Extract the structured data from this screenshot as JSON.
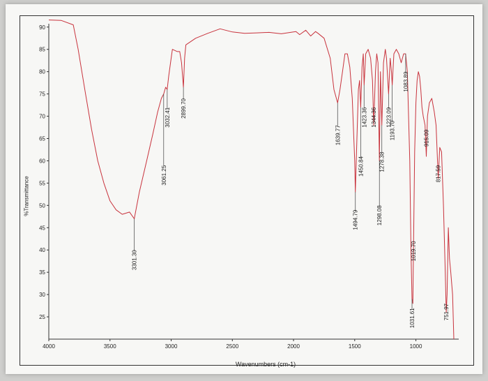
{
  "chart_data": {
    "type": "line",
    "title": "",
    "xlabel": "Wavenumbers (cm-1)",
    "ylabel": "%Transmittance",
    "xlim": [
      4000,
      650
    ],
    "ylim": [
      20,
      92
    ],
    "x_ticks": [
      4000,
      3500,
      3000,
      2500,
      2000,
      1500,
      1000
    ],
    "y_ticks": [
      25,
      30,
      35,
      40,
      45,
      50,
      55,
      60,
      65,
      70,
      75,
      80,
      85,
      90
    ],
    "series": [
      {
        "color": "#c8323c",
        "points": [
          [
            4000,
            91.6
          ],
          [
            3900,
            91.5
          ],
          [
            3800,
            90.5
          ],
          [
            3760,
            85
          ],
          [
            3700,
            75
          ],
          [
            3650,
            67
          ],
          [
            3600,
            60
          ],
          [
            3550,
            55
          ],
          [
            3500,
            51
          ],
          [
            3450,
            49
          ],
          [
            3400,
            48
          ],
          [
            3340,
            48.5
          ],
          [
            3301.3,
            47
          ],
          [
            3260,
            53
          ],
          [
            3200,
            60
          ],
          [
            3150,
            66
          ],
          [
            3110,
            71
          ],
          [
            3080,
            74
          ],
          [
            3061.25,
            75
          ],
          [
            3045,
            76.5
          ],
          [
            3032.41,
            76
          ],
          [
            3020,
            79
          ],
          [
            3000,
            83
          ],
          [
            2990,
            85
          ],
          [
            2950,
            84.5
          ],
          [
            2930,
            84.5
          ],
          [
            2915,
            82
          ],
          [
            2899.7,
            76.5
          ],
          [
            2890,
            83
          ],
          [
            2880,
            86
          ],
          [
            2800,
            87.5
          ],
          [
            2700,
            88.6
          ],
          [
            2600,
            89.6
          ],
          [
            2500,
            88.9
          ],
          [
            2400,
            88.6
          ],
          [
            2300,
            88.7
          ],
          [
            2200,
            88.8
          ],
          [
            2100,
            88.5
          ],
          [
            2000,
            88.9
          ],
          [
            1980,
            89
          ],
          [
            1950,
            88.3
          ],
          [
            1900,
            89.3
          ],
          [
            1860,
            88
          ],
          [
            1820,
            89
          ],
          [
            1800,
            88.6
          ],
          [
            1750,
            87.5
          ],
          [
            1700,
            83
          ],
          [
            1670,
            76
          ],
          [
            1650,
            74
          ],
          [
            1639.77,
            73
          ],
          [
            1620,
            76
          ],
          [
            1600,
            80
          ],
          [
            1580,
            84
          ],
          [
            1560,
            84
          ],
          [
            1540,
            81
          ],
          [
            1520,
            74
          ],
          [
            1500,
            60
          ],
          [
            1494.79,
            53
          ],
          [
            1485,
            62
          ],
          [
            1470,
            76
          ],
          [
            1460,
            78
          ],
          [
            1450.84,
            72
          ],
          [
            1440,
            81
          ],
          [
            1430,
            84
          ],
          [
            1423.36,
            77
          ],
          [
            1410,
            84
          ],
          [
            1390,
            85
          ],
          [
            1370,
            83
          ],
          [
            1355,
            78
          ],
          [
            1344.36,
            68
          ],
          [
            1330,
            80
          ],
          [
            1320,
            84
          ],
          [
            1310,
            82
          ],
          [
            1298.08,
            60
          ],
          [
            1290,
            80
          ],
          [
            1278.38,
            68
          ],
          [
            1265,
            82
          ],
          [
            1250,
            85
          ],
          [
            1240,
            83
          ],
          [
            1223.09,
            75
          ],
          [
            1210,
            83
          ],
          [
            1200,
            80
          ],
          [
            1193.7,
            77
          ],
          [
            1180,
            84
          ],
          [
            1160,
            85
          ],
          [
            1140,
            84
          ],
          [
            1120,
            82
          ],
          [
            1100,
            84
          ],
          [
            1083.89,
            84
          ],
          [
            1070,
            80
          ],
          [
            1050,
            60
          ],
          [
            1040,
            40
          ],
          [
            1031.61,
            29
          ],
          [
            1025,
            28
          ],
          [
            1019.7,
            40
          ],
          [
            1010,
            62
          ],
          [
            1000,
            73
          ],
          [
            990,
            78
          ],
          [
            980,
            80
          ],
          [
            970,
            79
          ],
          [
            960,
            76
          ],
          [
            950,
            72
          ],
          [
            940,
            70
          ],
          [
            925,
            68
          ],
          [
            915.09,
            61
          ],
          [
            905,
            70
          ],
          [
            890,
            73
          ],
          [
            870,
            74
          ],
          [
            850,
            71
          ],
          [
            835,
            68
          ],
          [
            817.59,
            56
          ],
          [
            805,
            63
          ],
          [
            790,
            62
          ],
          [
            775,
            50
          ],
          [
            760,
            35
          ],
          [
            751.97,
            26
          ],
          [
            745,
            30
          ],
          [
            735,
            45
          ],
          [
            725,
            38
          ],
          [
            715,
            35
          ],
          [
            700,
            30
          ],
          [
            690,
            20
          ]
        ]
      }
    ],
    "peak_labels": [
      {
        "x": 3301.3,
        "text": "3301.30",
        "label_y": 40,
        "line_top": 47,
        "line_bottom": 43
      },
      {
        "x": 3061.25,
        "text": "3061.25",
        "label_y": 59,
        "line_top": 75,
        "line_bottom": 63
      },
      {
        "x": 3032.41,
        "text": "3032.41",
        "label_y": 72,
        "line_top": 76,
        "line_bottom": 76
      },
      {
        "x": 2899.7,
        "text": "2899.70",
        "label_y": 74,
        "line_top": 76.5,
        "line_bottom": 76.5
      },
      {
        "x": 1639.77,
        "text": "1639.77",
        "label_y": 68,
        "line_top": 73,
        "line_bottom": 73
      },
      {
        "x": 1494.79,
        "text": "1494.79",
        "label_y": 49,
        "line_top": 53,
        "line_bottom": 53
      },
      {
        "x": 1450.84,
        "text": "1450.84",
        "label_y": 61,
        "line_top": 72,
        "line_bottom": 65
      },
      {
        "x": 1423.36,
        "text": "1423.36",
        "label_y": 72,
        "line_top": 77,
        "line_bottom": 77
      },
      {
        "x": 1344.36,
        "text": "1344.36",
        "label_y": 72,
        "line_top": 68,
        "line_bottom": 68
      },
      {
        "x": 1298.08,
        "text": "1298.08",
        "label_y": 50,
        "line_top": 60,
        "line_bottom": 55
      },
      {
        "x": 1278.38,
        "text": "1278.38",
        "label_y": 62,
        "line_top": 68,
        "line_bottom": 66
      },
      {
        "x": 1223.09,
        "text": "1223.09",
        "label_y": 72,
        "line_top": 75,
        "line_bottom": 75
      },
      {
        "x": 1193.7,
        "text": "1193.70",
        "label_y": 69,
        "line_top": 77,
        "line_bottom": 77
      },
      {
        "x": 1083.89,
        "text": "1083.89",
        "label_y": 80,
        "line_top": 84,
        "line_bottom": 84
      },
      {
        "x": 1019.7,
        "text": "1019.70",
        "label_y": 42,
        "line_top": 40,
        "line_bottom": 40
      },
      {
        "x": 1031.61,
        "text": "1031.61",
        "label_y": 27,
        "line_top": 29,
        "line_bottom": 29
      },
      {
        "x": 915.09,
        "text": "915.09",
        "label_y": 67,
        "line_top": 61,
        "line_bottom": 61
      },
      {
        "x": 817.59,
        "text": "817.59",
        "label_y": 59,
        "line_top": 56,
        "line_bottom": 56
      },
      {
        "x": 751.97,
        "text": "751.97",
        "label_y": 28,
        "line_top": 26,
        "line_bottom": 26
      }
    ]
  }
}
